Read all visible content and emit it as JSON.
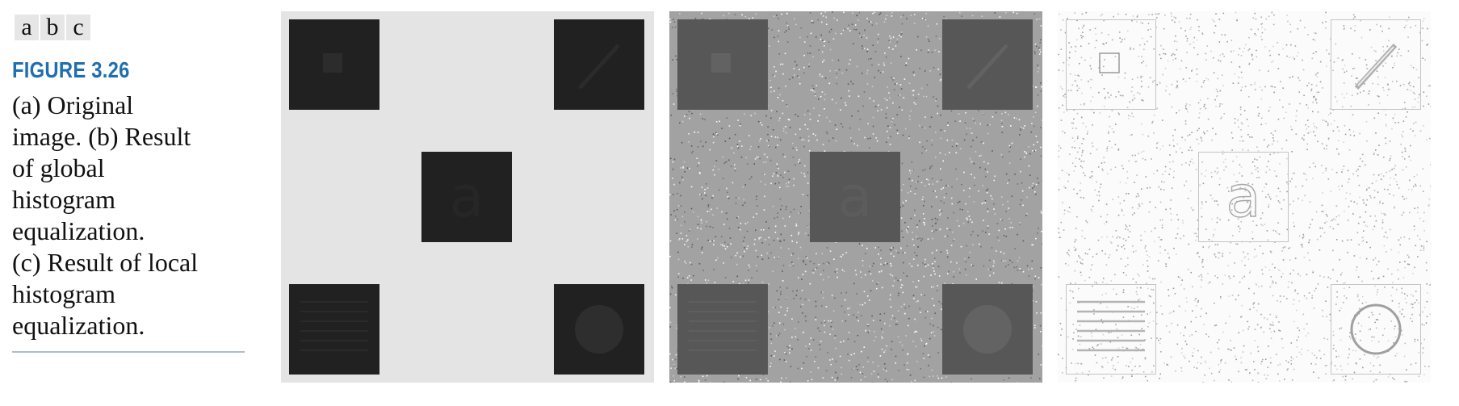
{
  "subfigure_labels": [
    "a",
    "b",
    "c"
  ],
  "figure": {
    "title": "FIGURE 3.26",
    "caption_lines": [
      "(a) Original",
      "image. (b) Result",
      "of global",
      "histogram",
      "equalization.",
      "(c) Result of local",
      "histogram",
      "equalization."
    ]
  },
  "panels": [
    {
      "id": "a",
      "embedded_letter": "a",
      "background": "#e4e4e4",
      "square_color": "#212121"
    },
    {
      "id": "b",
      "embedded_letter": "a",
      "background": "#a2a2a2",
      "square_color": "#575757"
    },
    {
      "id": "c",
      "embedded_letter": "a",
      "background": "#fbfbfb",
      "square_color": "#c4c4c4"
    }
  ],
  "colors": {
    "title": "#1f6fb0",
    "rule": "#a9bfd0"
  }
}
